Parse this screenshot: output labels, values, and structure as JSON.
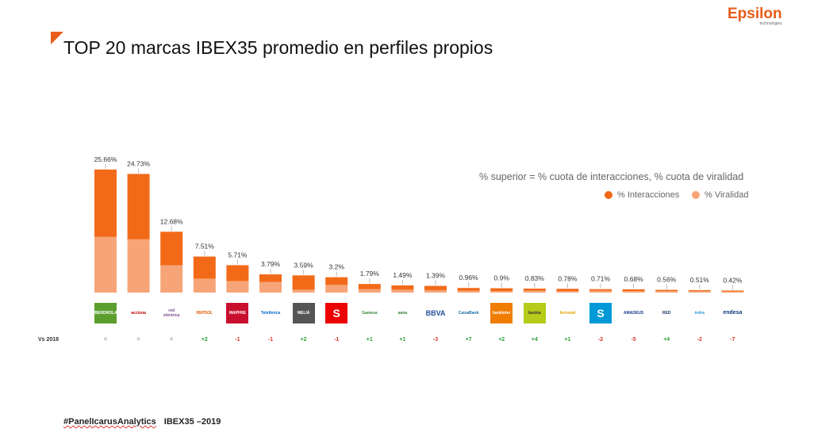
{
  "title": "TOP 20 marcas IBEX35 promedio en perfiles propios",
  "logo": {
    "name": "Epsilon",
    "subtitle": "technologies"
  },
  "footer": {
    "tag": "#PanelIcarusAnalytics",
    "context": "IBEX35 –2019"
  },
  "legend_note": "% superior = % cuota de interacciones, % cuota de viralidad",
  "vs_label": "Vs 2018",
  "colors": {
    "accent": "#e85d1a",
    "interacciones": "#f26a18",
    "viralidad": "#f7a578",
    "up": "#2e9e3a",
    "down": "#d9342b",
    "neutral": "#999999"
  },
  "chart_data": {
    "type": "bar",
    "stacked": true,
    "title": "TOP 20 marcas IBEX35 promedio en perfiles propios",
    "categories": [
      "Iberdrola",
      "Acciona",
      "Red Eléctrica",
      "Repsol",
      "Mapfre",
      "Telefónica",
      "Meliá",
      "Santander",
      "Gamesa",
      "Aena",
      "BBVA",
      "CaixaBank",
      "Bankinter",
      "Bankia",
      "Ferrovial",
      "Sabadell",
      "Amadeus",
      "Red Eléctrica Corporación",
      "Indra",
      "Endesa"
    ],
    "totals_labels": [
      "25.66%",
      "24.73%",
      "12.68%",
      "7.51%",
      "5.71%",
      "3.79%",
      "3.59%",
      "3.2%",
      "1.79%",
      "1.49%",
      "1.39%",
      "0.96%",
      "0.9%",
      "0.83%",
      "0.78%",
      "0.71%",
      "0.68%",
      "0.56%",
      "0.51%",
      "0.42%"
    ],
    "totals": [
      25.66,
      24.73,
      12.68,
      7.51,
      5.71,
      3.79,
      3.59,
      3.2,
      1.79,
      1.49,
      1.39,
      0.96,
      0.9,
      0.83,
      0.78,
      0.71,
      0.68,
      0.56,
      0.51,
      0.42
    ],
    "series": [
      {
        "name": "% Viralidad",
        "values": [
          11.6,
          11.1,
          5.7,
          2.9,
          2.4,
          2.2,
          0.6,
          1.6,
          0.7,
          0.6,
          0.5,
          0.4,
          0.3,
          0.4,
          0.3,
          0.4,
          0.3,
          0.3,
          0.3,
          0.2
        ]
      },
      {
        "name": "% Interacciones",
        "values": [
          14.06,
          13.63,
          6.98,
          4.61,
          3.31,
          1.59,
          2.99,
          1.6,
          1.09,
          0.89,
          0.89,
          0.56,
          0.6,
          0.43,
          0.48,
          0.31,
          0.38,
          0.26,
          0.21,
          0.22
        ]
      }
    ],
    "ylim": [
      0,
      27
    ],
    "legend_position": "top-right",
    "grid": false,
    "changes": [
      "=",
      "=",
      "=",
      "+2",
      "-1",
      "-1",
      "+2",
      "-1",
      "+1",
      "+1",
      "-3",
      "+7",
      "+2",
      "+4",
      "+1",
      "-2",
      "-5",
      "+4",
      "-2",
      "-7"
    ]
  },
  "brands": [
    {
      "label": "IBERDROLA",
      "icon": "iberdrola-logo",
      "fg": "#ffffff",
      "bg": "#5c9e2e"
    },
    {
      "label": "acciona",
      "icon": "acciona-logo",
      "fg": "#c00000",
      "bg": "#ffffff"
    },
    {
      "label": "red eléctrica",
      "icon": "red-electrica-logo",
      "fg": "#7a4a8a",
      "bg": "#ffffff"
    },
    {
      "label": "REPSOL",
      "icon": "repsol-logo",
      "fg": "#e05a00",
      "bg": "#ffffff"
    },
    {
      "label": "MAPFRE",
      "icon": "mapfre-logo",
      "fg": "#ffffff",
      "bg": "#c8102e"
    },
    {
      "label": "Telefónica",
      "icon": "telefonica-logo",
      "fg": "#0066cc",
      "bg": "#ffffff"
    },
    {
      "label": "MELIÁ",
      "icon": "melia-logo",
      "fg": "#ffffff",
      "bg": "#555555"
    },
    {
      "label": "S",
      "icon": "santander-logo",
      "fg": "#ffffff",
      "bg": "#ec0000"
    },
    {
      "label": "Gamesa",
      "icon": "gamesa-logo",
      "fg": "#3a8a3a",
      "bg": "#ffffff"
    },
    {
      "label": "aena",
      "icon": "aena-logo",
      "fg": "#2e7d32",
      "bg": "#ffffff"
    },
    {
      "label": "BBVA",
      "icon": "bbva-logo",
      "fg": "#1f4e9a",
      "bg": "#ffffff"
    },
    {
      "label": "CaixaBank",
      "icon": "caixabank-logo",
      "fg": "#1a6ca8",
      "bg": "#ffffff"
    },
    {
      "label": "bankinter",
      "icon": "bankinter-logo",
      "fg": "#ffffff",
      "bg": "#f07d00"
    },
    {
      "label": "bankia",
      "icon": "bankia-logo",
      "fg": "#333333",
      "bg": "#b5cc1a"
    },
    {
      "label": "ferrovial",
      "icon": "ferrovial-logo",
      "fg": "#e8a000",
      "bg": "#ffffff"
    },
    {
      "label": "S",
      "icon": "sabadell-logo",
      "fg": "#ffffff",
      "bg": "#0099d8"
    },
    {
      "label": "AMADEUS",
      "icon": "amadeus-logo",
      "fg": "#1b3a8a",
      "bg": "#ffffff"
    },
    {
      "label": "RED",
      "icon": "red-corporacion-logo",
      "fg": "#1a3a6a",
      "bg": "#ffffff"
    },
    {
      "label": "indra",
      "icon": "indra-logo",
      "fg": "#2a9ad8",
      "bg": "#ffffff"
    },
    {
      "label": "endesa",
      "icon": "endesa-logo",
      "fg": "#0a3a7a",
      "bg": "#ffffff"
    }
  ]
}
